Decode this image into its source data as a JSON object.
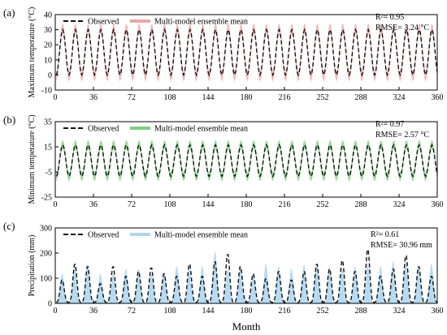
{
  "figure": {
    "xlabel": "Month"
  },
  "colors": {
    "observed": "#111111",
    "panel_a": "#e8a8a8",
    "panel_b": "#7fcf7f",
    "panel_c": "#aed6ef"
  },
  "chart_data": [
    {
      "type": "line",
      "panel_label": "(a)",
      "ylabel": "Maximum temperature (°C)",
      "ylim": [
        -10,
        40
      ],
      "yticks": [
        -10,
        0,
        10,
        20,
        30,
        40
      ],
      "xlim": [
        0,
        360
      ],
      "xticks": [
        0,
        36,
        72,
        108,
        144,
        180,
        216,
        252,
        288,
        324,
        360
      ],
      "grid": false,
      "legend": "top-left",
      "series": [
        {
          "name": "Observed",
          "style": "dashed",
          "seasonal_mean": 15,
          "seasonal_amplitude": 15
        },
        {
          "name": "Multi-model ensemble mean",
          "style": "band",
          "seasonal_mean": 15,
          "seasonal_amplitude": 16,
          "band_halfwidth": 3.5
        }
      ],
      "stats": {
        "r2": "R²= 0.95",
        "rmse": "RMSE= 3.24 °C"
      }
    },
    {
      "type": "line",
      "panel_label": "(b)",
      "ylabel": "Minimum temperature (°C)",
      "ylim": [
        -25,
        35
      ],
      "yticks": [
        -25,
        -5,
        15,
        35
      ],
      "xlim": [
        0,
        360
      ],
      "xticks": [
        0,
        36,
        72,
        108,
        144,
        180,
        216,
        252,
        288,
        324,
        360
      ],
      "grid": false,
      "legend": "top-left",
      "series": [
        {
          "name": "Observed",
          "style": "dashed",
          "seasonal_mean": 4,
          "seasonal_amplitude": 12.5
        },
        {
          "name": "Multi-model ensemble mean",
          "style": "band",
          "seasonal_mean": 4,
          "seasonal_amplitude": 13,
          "band_halfwidth": 3.5
        }
      ],
      "stats": {
        "r2": "R²= 0.97",
        "rmse": "RMSE= 2.57 °C"
      }
    },
    {
      "type": "line",
      "panel_label": "(c)",
      "ylabel": "Precipitation (mm)",
      "ylim": [
        0,
        300
      ],
      "yticks": [
        0,
        100,
        200,
        300
      ],
      "xlim": [
        0,
        360
      ],
      "xticks": [
        0,
        36,
        72,
        108,
        144,
        180,
        216,
        252,
        288,
        324,
        360
      ],
      "grid": false,
      "legend": "top-left",
      "series": [
        {
          "name": "Observed",
          "style": "dashed",
          "annual_peaks": [
            95,
            160,
            150,
            80,
            150,
            110,
            130,
            145,
            120,
            110,
            160,
            110,
            170,
            200,
            150,
            120,
            100,
            130,
            95,
            130,
            160,
            140,
            175,
            130,
            220,
            110,
            140,
            195,
            150,
            110
          ]
        },
        {
          "name": "Multi-model ensemble mean",
          "style": "band",
          "annual_peaks": [
            120,
            150,
            160,
            120,
            120,
            140,
            140,
            120,
            130,
            150,
            140,
            150,
            210,
            140,
            150,
            120,
            160,
            150,
            140,
            155,
            160,
            150,
            140,
            150,
            160,
            150,
            170,
            170,
            150,
            160
          ]
        }
      ],
      "stats": {
        "r2": "R²= 0.61",
        "rmse": "RMSE= 30.96 mm"
      }
    }
  ]
}
